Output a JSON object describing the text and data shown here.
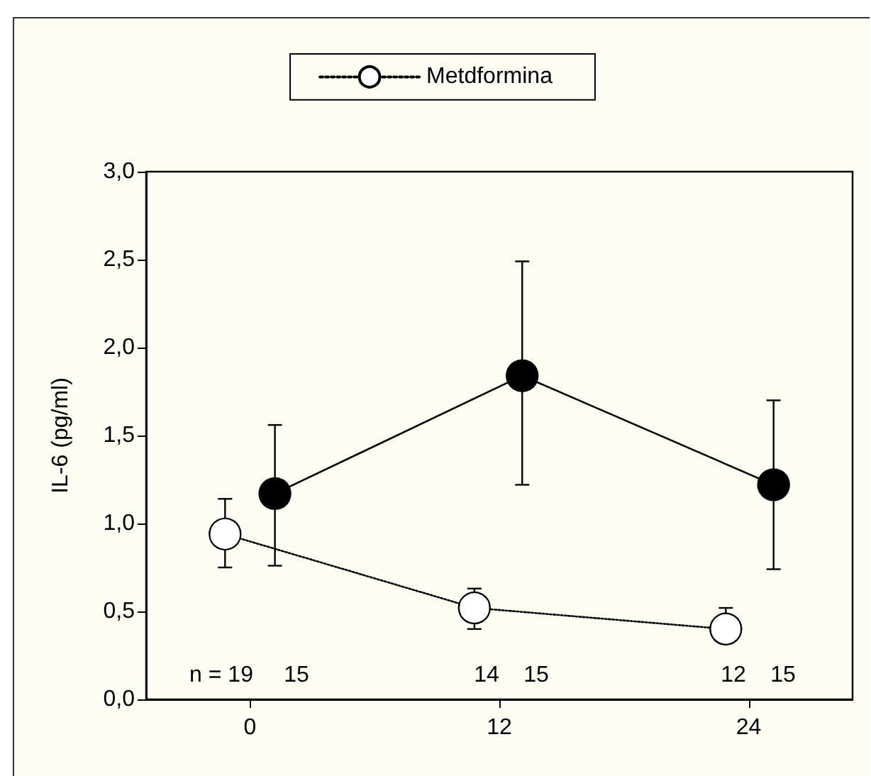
{
  "chart_data": {
    "type": "line",
    "ylabel": "IL-6 (pg/ml)",
    "series": [
      {
        "color": "#000000",
        "line_style": "solid",
        "x": [
          1.2,
          13.1,
          25.2
        ],
        "values": [
          1.17,
          1.84,
          1.22
        ],
        "errors": [
          [
            0.76,
            1.56
          ],
          [
            1.22,
            2.49
          ],
          [
            0.74,
            1.7
          ]
        ]
      },
      {
        "name": "Metdformina",
        "color": "#ffffff",
        "line_style": "dotted",
        "x": [
          -1.2,
          10.8,
          22.9
        ],
        "values": [
          0.94,
          0.52,
          0.4
        ],
        "errors": [
          [
            0.75,
            1.14
          ],
          [
            0.4,
            0.63
          ],
          [
            0.4,
            0.52
          ]
        ]
      }
    ],
    "xlim": [
      -5,
      29
    ],
    "xticks": [
      0,
      12,
      24
    ],
    "ylim": [
      0,
      3
    ],
    "yticks": [
      {
        "value": 0,
        "label": "0,0"
      },
      {
        "value": 0.5,
        "label": "0,5"
      },
      {
        "value": 1,
        "label": "1,0"
      },
      {
        "value": 1.5,
        "label": "1,5"
      },
      {
        "value": 2,
        "label": "2,0"
      },
      {
        "value": 2.5,
        "label": "2,5"
      },
      {
        "value": 3,
        "label": "3,0"
      }
    ],
    "annotations": [
      "n = 19",
      "15",
      "14",
      "15",
      "12",
      "15"
    ],
    "marker": "circle",
    "grid": false,
    "legend": "top"
  }
}
